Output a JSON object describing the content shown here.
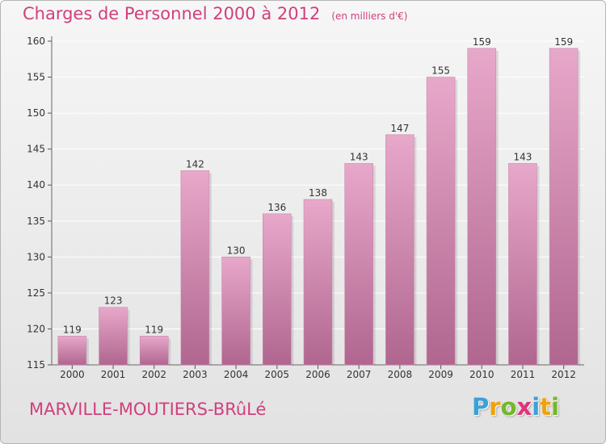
{
  "title": "Charges de Personnel 2000 à 2012",
  "subtitle": "(en milliers d'€)",
  "place": "MARVILLE-MOUTIERS-BRûLé",
  "brand": {
    "text": "Proxiti",
    "letters": [
      {
        "ch": "P",
        "color": "#3aa0d8"
      },
      {
        "ch": "r",
        "color": "#f0a20c"
      },
      {
        "ch": "o",
        "color": "#73b72b"
      },
      {
        "ch": "x",
        "color": "#e0337a"
      },
      {
        "ch": "i",
        "color": "#3aa0d8"
      },
      {
        "ch": "t",
        "color": "#f0a20c"
      },
      {
        "ch": "i",
        "color": "#73b72b"
      }
    ]
  },
  "colors": {
    "accent": "#d0407d",
    "bar_top": "#e8a8ca",
    "bar_bottom": "#b0668f",
    "grid": "#ffffff"
  },
  "chart_data": {
    "type": "bar",
    "categories": [
      "2000",
      "2001",
      "2002",
      "2003",
      "2004",
      "2005",
      "2006",
      "2007",
      "2008",
      "2009",
      "2010",
      "2011",
      "2012"
    ],
    "values": [
      119,
      123,
      119,
      142,
      130,
      136,
      138,
      143,
      147,
      155,
      159,
      143,
      159
    ],
    "ylim": [
      115,
      160
    ],
    "yticks": [
      115,
      120,
      125,
      130,
      135,
      140,
      145,
      150,
      155,
      160
    ],
    "grid": true,
    "title": "Charges de Personnel 2000 à 2012",
    "xlabel": "",
    "ylabel": ""
  }
}
